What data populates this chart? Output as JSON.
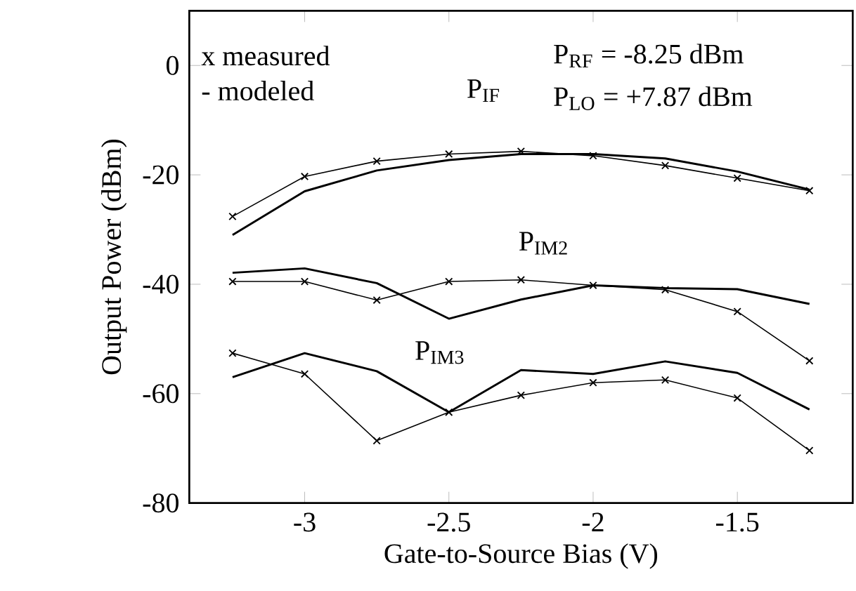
{
  "chart_data": {
    "type": "line",
    "xlabel": "Gate-to-Source Bias (V)",
    "ylabel": "Output Power (dBm)",
    "xlim": [
      -3.4,
      -1.1
    ],
    "ylim": [
      -80,
      10
    ],
    "xticks": [
      -3,
      -2.5,
      -2,
      -1.5
    ],
    "yticks": [
      -80,
      -60,
      -40,
      -20,
      0
    ],
    "x": [
      -3.25,
      -3,
      -2.75,
      -2.5,
      -2.25,
      -2,
      -1.75,
      -1.5,
      -1.25
    ],
    "grid": false,
    "line_style": "solid",
    "series": [
      {
        "color": "#000000",
        "marker": "cross",
        "values": [
          -27.6,
          -20.3,
          -17.5,
          -16.2,
          -15.7,
          -16.5,
          -18.3,
          -20.6,
          -22.9
        ]
      },
      {
        "color": "#000000",
        "marker": "none",
        "values": [
          -31,
          -23,
          -19.2,
          -17.3,
          -16.2,
          -16.2,
          -17,
          -19.4,
          -22.7
        ]
      },
      {
        "color": "#000000",
        "marker": "cross",
        "values": [
          -39.5,
          -39.5,
          -42.9,
          -39.5,
          -39.2,
          -40.2,
          -41,
          -45,
          -54
        ]
      },
      {
        "color": "#000000",
        "marker": "none",
        "values": [
          -37.9,
          -37.1,
          -39.8,
          -46.3,
          -42.8,
          -40.2,
          -40.7,
          -40.9,
          -43.6
        ]
      },
      {
        "color": "#000000",
        "marker": "cross",
        "values": [
          -52.6,
          -56.4,
          -68.6,
          -63.4,
          -60.3,
          -58,
          -57.5,
          -60.8,
          -70.4
        ]
      },
      {
        "color": "#000000",
        "marker": "none",
        "values": [
          -57,
          -52.6,
          -55.9,
          -63.4,
          -55.7,
          -56.4,
          -54.1,
          -56.2,
          -62.9
        ]
      }
    ],
    "annotations": [
      "x  measured",
      "-  modeled",
      "P$_{RF}$ = -8.25 dBm",
      "P$_{LO}$ = +7.87 dBm",
      "P$_{IF}$",
      "P$_{IM2}$",
      "P$_{IM3}$"
    ]
  }
}
